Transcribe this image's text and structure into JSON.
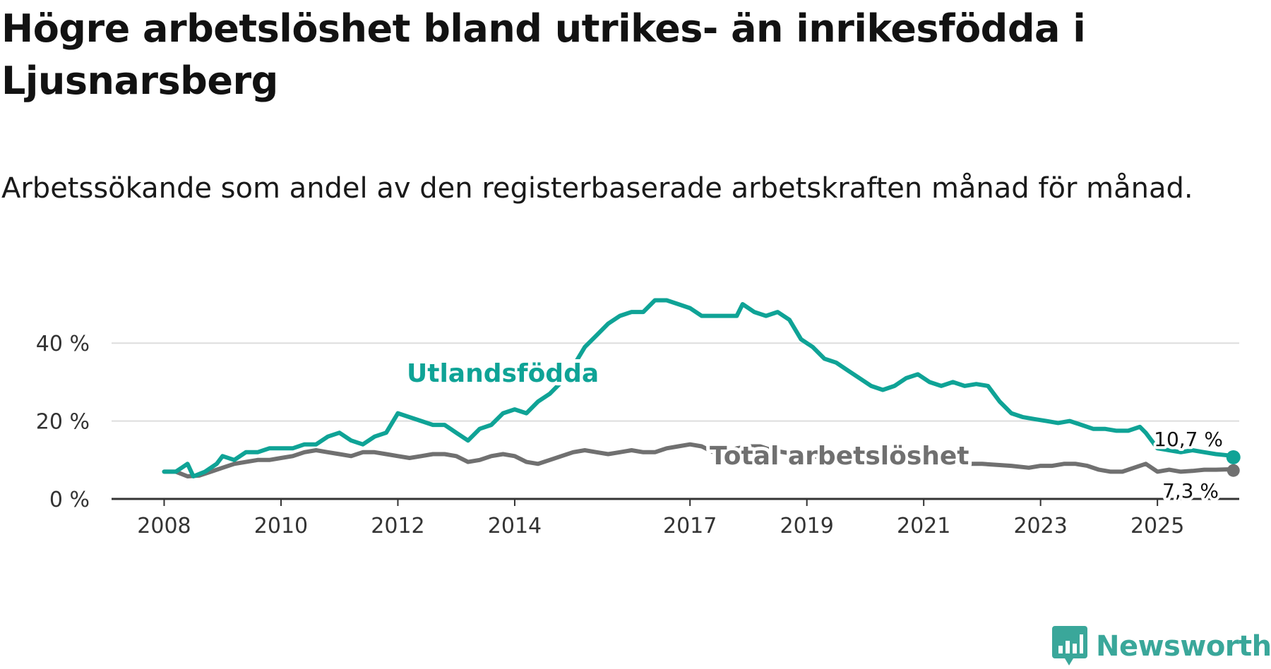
{
  "title": "Högre arbetslöshet bland utrikes- än inrikesfödda i Ljusnarsberg",
  "subtitle": "Arbetssökande som andel av den registerbaserade arbetskraften månad för månad.",
  "source_logo": "Newsworthy",
  "colors": {
    "foreign": "#0fa396",
    "total": "#707070",
    "grid": "#dddddd",
    "axis": "#333333",
    "logo": "#3aa79a"
  },
  "chart_data": {
    "type": "line",
    "title": "Högre arbetslöshet bland utrikes- än inrikesfödda i Ljusnarsberg",
    "xlabel": "",
    "ylabel": "",
    "xlim": [
      2007.1,
      2026.4
    ],
    "ylim": [
      0,
      52
    ],
    "y_ticks": [
      0,
      20,
      40
    ],
    "y_tick_labels": [
      "0 %",
      "20 %",
      "40 %"
    ],
    "x_ticks": [
      2008,
      2010,
      2012,
      2014,
      2017,
      2019,
      2021,
      2023,
      2025
    ],
    "x_tick_labels": [
      "2008",
      "2010",
      "2012",
      "2014",
      "2017",
      "2019",
      "2021",
      "2023",
      "2025"
    ],
    "grid": true,
    "series": [
      {
        "name": "Utlandsfödda",
        "end_label": "10,7 %",
        "points": [
          [
            2008.0,
            7.0
          ],
          [
            2008.2,
            7.0
          ],
          [
            2008.4,
            9.0
          ],
          [
            2008.5,
            5.8
          ],
          [
            2008.7,
            7.0
          ],
          [
            2008.9,
            9.0
          ],
          [
            2009.0,
            11.0
          ],
          [
            2009.2,
            10.0
          ],
          [
            2009.4,
            12.0
          ],
          [
            2009.6,
            12.0
          ],
          [
            2009.8,
            13.0
          ],
          [
            2010.0,
            13.0
          ],
          [
            2010.2,
            13.0
          ],
          [
            2010.4,
            14.0
          ],
          [
            2010.6,
            14.0
          ],
          [
            2010.8,
            16.0
          ],
          [
            2011.0,
            17.0
          ],
          [
            2011.2,
            15.0
          ],
          [
            2011.4,
            14.0
          ],
          [
            2011.6,
            16.0
          ],
          [
            2011.8,
            17.0
          ],
          [
            2012.0,
            22.0
          ],
          [
            2012.2,
            21.0
          ],
          [
            2012.4,
            20.0
          ],
          [
            2012.6,
            19.0
          ],
          [
            2012.8,
            19.0
          ],
          [
            2013.0,
            17.0
          ],
          [
            2013.2,
            15.0
          ],
          [
            2013.4,
            18.0
          ],
          [
            2013.6,
            19.0
          ],
          [
            2013.8,
            22.0
          ],
          [
            2014.0,
            23.0
          ],
          [
            2014.2,
            22.0
          ],
          [
            2014.4,
            25.0
          ],
          [
            2014.6,
            27.0
          ],
          [
            2014.8,
            30.0
          ],
          [
            2015.0,
            34.0
          ],
          [
            2015.2,
            39.0
          ],
          [
            2015.4,
            42.0
          ],
          [
            2015.6,
            45.0
          ],
          [
            2015.8,
            47.0
          ],
          [
            2016.0,
            48.0
          ],
          [
            2016.2,
            48.0
          ],
          [
            2016.4,
            51.0
          ],
          [
            2016.6,
            51.0
          ],
          [
            2016.8,
            50.0
          ],
          [
            2017.0,
            49.0
          ],
          [
            2017.2,
            47.0
          ],
          [
            2017.4,
            47.0
          ],
          [
            2017.6,
            47.0
          ],
          [
            2017.8,
            47.0
          ],
          [
            2017.9,
            50.0
          ],
          [
            2018.1,
            48.0
          ],
          [
            2018.3,
            47.0
          ],
          [
            2018.5,
            48.0
          ],
          [
            2018.7,
            46.0
          ],
          [
            2018.9,
            41.0
          ],
          [
            2019.1,
            39.0
          ],
          [
            2019.3,
            36.0
          ],
          [
            2019.5,
            35.0
          ],
          [
            2019.7,
            33.0
          ],
          [
            2019.9,
            31.0
          ],
          [
            2020.1,
            29.0
          ],
          [
            2020.3,
            28.0
          ],
          [
            2020.5,
            29.0
          ],
          [
            2020.7,
            31.0
          ],
          [
            2020.9,
            32.0
          ],
          [
            2021.1,
            30.0
          ],
          [
            2021.3,
            29.0
          ],
          [
            2021.5,
            30.0
          ],
          [
            2021.7,
            29.0
          ],
          [
            2021.9,
            29.5
          ],
          [
            2022.1,
            29.0
          ],
          [
            2022.3,
            25.0
          ],
          [
            2022.5,
            22.0
          ],
          [
            2022.7,
            21.0
          ],
          [
            2022.9,
            20.5
          ],
          [
            2023.1,
            20.0
          ],
          [
            2023.3,
            19.5
          ],
          [
            2023.5,
            20.0
          ],
          [
            2023.7,
            19.0
          ],
          [
            2023.9,
            18.0
          ],
          [
            2024.1,
            18.0
          ],
          [
            2024.3,
            17.5
          ],
          [
            2024.5,
            17.5
          ],
          [
            2024.7,
            18.5
          ],
          [
            2024.8,
            17.0
          ],
          [
            2025.0,
            13.0
          ],
          [
            2025.2,
            12.5
          ],
          [
            2025.4,
            12.0
          ],
          [
            2025.6,
            12.5
          ],
          [
            2025.8,
            12.0
          ],
          [
            2026.0,
            11.5
          ],
          [
            2026.2,
            11.2
          ],
          [
            2026.3,
            10.7
          ]
        ]
      },
      {
        "name": "Total arbetslöshet",
        "end_label": "7,3 %",
        "points": [
          [
            2008.0,
            7.0
          ],
          [
            2008.2,
            7.0
          ],
          [
            2008.4,
            5.8
          ],
          [
            2008.6,
            6.0
          ],
          [
            2008.8,
            7.0
          ],
          [
            2009.0,
            8.0
          ],
          [
            2009.2,
            9.0
          ],
          [
            2009.4,
            9.5
          ],
          [
            2009.6,
            10.0
          ],
          [
            2009.8,
            10.0
          ],
          [
            2010.0,
            10.5
          ],
          [
            2010.2,
            11.0
          ],
          [
            2010.4,
            12.0
          ],
          [
            2010.6,
            12.5
          ],
          [
            2010.8,
            12.0
          ],
          [
            2011.0,
            11.5
          ],
          [
            2011.2,
            11.0
          ],
          [
            2011.4,
            12.0
          ],
          [
            2011.6,
            12.0
          ],
          [
            2011.8,
            11.5
          ],
          [
            2012.0,
            11.0
          ],
          [
            2012.2,
            10.5
          ],
          [
            2012.4,
            11.0
          ],
          [
            2012.6,
            11.5
          ],
          [
            2012.8,
            11.5
          ],
          [
            2013.0,
            11.0
          ],
          [
            2013.2,
            9.5
          ],
          [
            2013.4,
            10.0
          ],
          [
            2013.6,
            11.0
          ],
          [
            2013.8,
            11.5
          ],
          [
            2014.0,
            11.0
          ],
          [
            2014.2,
            9.5
          ],
          [
            2014.4,
            9.0
          ],
          [
            2014.6,
            10.0
          ],
          [
            2014.8,
            11.0
          ],
          [
            2015.0,
            12.0
          ],
          [
            2015.2,
            12.5
          ],
          [
            2015.4,
            12.0
          ],
          [
            2015.6,
            11.5
          ],
          [
            2015.8,
            12.0
          ],
          [
            2016.0,
            12.5
          ],
          [
            2016.2,
            12.0
          ],
          [
            2016.4,
            12.0
          ],
          [
            2016.6,
            13.0
          ],
          [
            2016.8,
            13.5
          ],
          [
            2017.0,
            14.0
          ],
          [
            2017.2,
            13.5
          ],
          [
            2017.4,
            12.0
          ],
          [
            2017.6,
            12.0
          ],
          [
            2017.8,
            13.0
          ],
          [
            2018.0,
            13.5
          ],
          [
            2018.2,
            13.5
          ],
          [
            2018.4,
            12.5
          ],
          [
            2018.6,
            12.0
          ],
          [
            2018.8,
            11.5
          ],
          [
            2019.0,
            11.0
          ],
          [
            2019.5,
            10.5
          ],
          [
            2020.0,
            10.0
          ],
          [
            2020.5,
            9.5
          ],
          [
            2021.0,
            9.5
          ],
          [
            2021.5,
            9.0
          ],
          [
            2022.0,
            9.0
          ],
          [
            2022.5,
            8.5
          ],
          [
            2022.8,
            8.0
          ],
          [
            2023.0,
            8.5
          ],
          [
            2023.2,
            8.5
          ],
          [
            2023.4,
            9.0
          ],
          [
            2023.6,
            9.0
          ],
          [
            2023.8,
            8.5
          ],
          [
            2024.0,
            7.5
          ],
          [
            2024.2,
            7.0
          ],
          [
            2024.4,
            7.0
          ],
          [
            2024.6,
            8.0
          ],
          [
            2024.8,
            9.0
          ],
          [
            2025.0,
            7.0
          ],
          [
            2025.2,
            7.5
          ],
          [
            2025.4,
            7.0
          ],
          [
            2025.6,
            7.2
          ],
          [
            2025.8,
            7.5
          ],
          [
            2026.0,
            7.5
          ],
          [
            2026.2,
            7.6
          ],
          [
            2026.3,
            7.3
          ]
        ]
      }
    ]
  }
}
